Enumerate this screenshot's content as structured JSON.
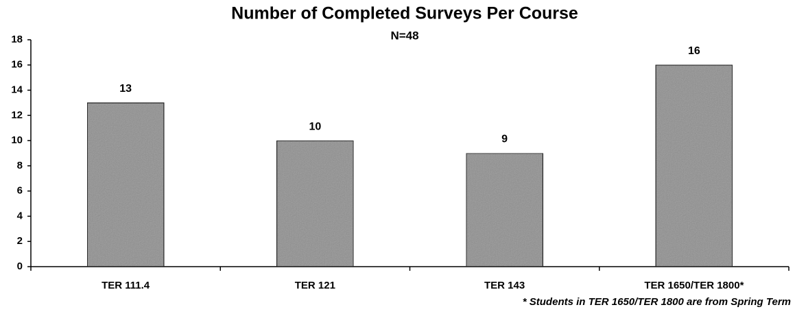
{
  "chart_data": {
    "type": "bar",
    "title": "Number of Completed Surveys Per Course",
    "subtitle": "N=48",
    "categories": [
      "TER 111.4",
      "TER 121",
      "TER 143",
      "TER 1650/TER 1800*"
    ],
    "values": [
      13,
      10,
      9,
      16
    ],
    "color": "#a9a9a9",
    "ylim": [
      0,
      18
    ],
    "yticks": [
      0,
      2,
      4,
      6,
      8,
      10,
      12,
      14,
      16,
      18
    ],
    "grid": false,
    "annotation": "* Students in TER 1650/TER 1800 are from Spring Term"
  }
}
